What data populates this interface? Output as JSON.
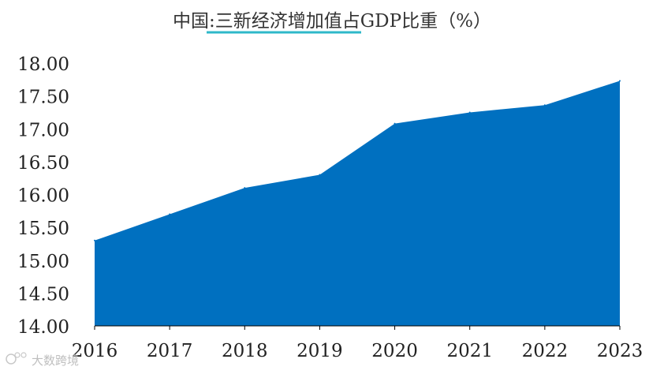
{
  "chart_data": {
    "type": "area",
    "title": "中国:三新经济增加值占GDP比重（%）",
    "title_underlined_part": "三新经济增加值",
    "xlabel": "",
    "ylabel": "",
    "categories": [
      "2016",
      "2017",
      "2018",
      "2019",
      "2020",
      "2021",
      "2022",
      "2023"
    ],
    "values": [
      15.3,
      15.7,
      16.1,
      16.3,
      17.08,
      17.25,
      17.36,
      17.73
    ],
    "ylim": [
      14.0,
      18.0
    ],
    "yticks": [
      14.0,
      14.5,
      15.0,
      15.5,
      16.0,
      16.5,
      17.0,
      17.5,
      18.0
    ],
    "ytick_labels": [
      "14.00",
      "14.50",
      "15.00",
      "15.50",
      "16.00",
      "16.50",
      "17.00",
      "17.50",
      "18.00"
    ],
    "grid": false,
    "legend": "none",
    "colors": {
      "area_fill": "#0070C0",
      "title_underline": "#2EB8C9",
      "axis": "#000000",
      "text": "#333333"
    }
  },
  "watermark": {
    "text": "大数跨境"
  }
}
